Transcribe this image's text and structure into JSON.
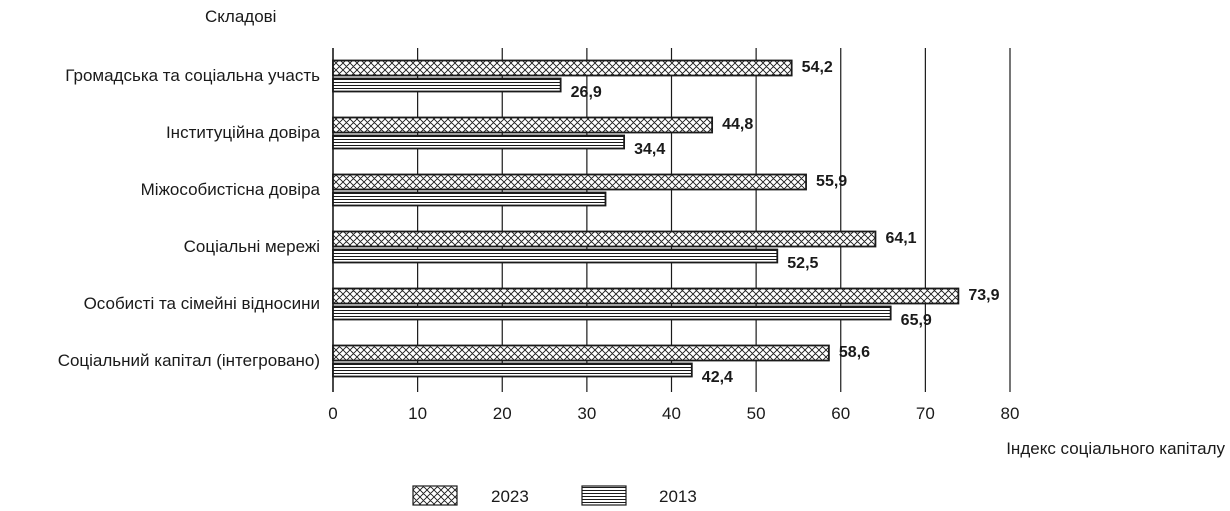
{
  "chart_data": {
    "type": "bar",
    "orientation": "horizontal",
    "ylabel": "Складові",
    "xlabel": "Індекс соціального капіталу",
    "xlim": [
      0,
      80
    ],
    "xticks": [
      "0",
      "10",
      "20",
      "30",
      "40",
      "50",
      "60",
      "70",
      "80"
    ],
    "grid": true,
    "legend_position": "bottom",
    "categories": [
      "Громадська та соціальна участь",
      "Інституційна довіра",
      "Міжособистісна довіра",
      "Соціальні мережі",
      "Особисті та сімейні відносини",
      "Соціальний капітал (інтегровано)"
    ],
    "series": [
      {
        "name": "2023",
        "pattern": "crosshatch",
        "values": [
          54.2,
          44.8,
          55.9,
          64.1,
          73.9,
          58.6
        ],
        "labels": [
          "54,2",
          "44,8",
          "55,9",
          "64,1",
          "73,9",
          "58,6"
        ]
      },
      {
        "name": "2013",
        "pattern": "horizontal-lines",
        "values": [
          26.9,
          34.4,
          32.2,
          52.5,
          65.9,
          42.4
        ],
        "labels": [
          "26,9",
          "34,4",
          "",
          "52,5",
          "65,9",
          "42,4"
        ]
      }
    ]
  }
}
